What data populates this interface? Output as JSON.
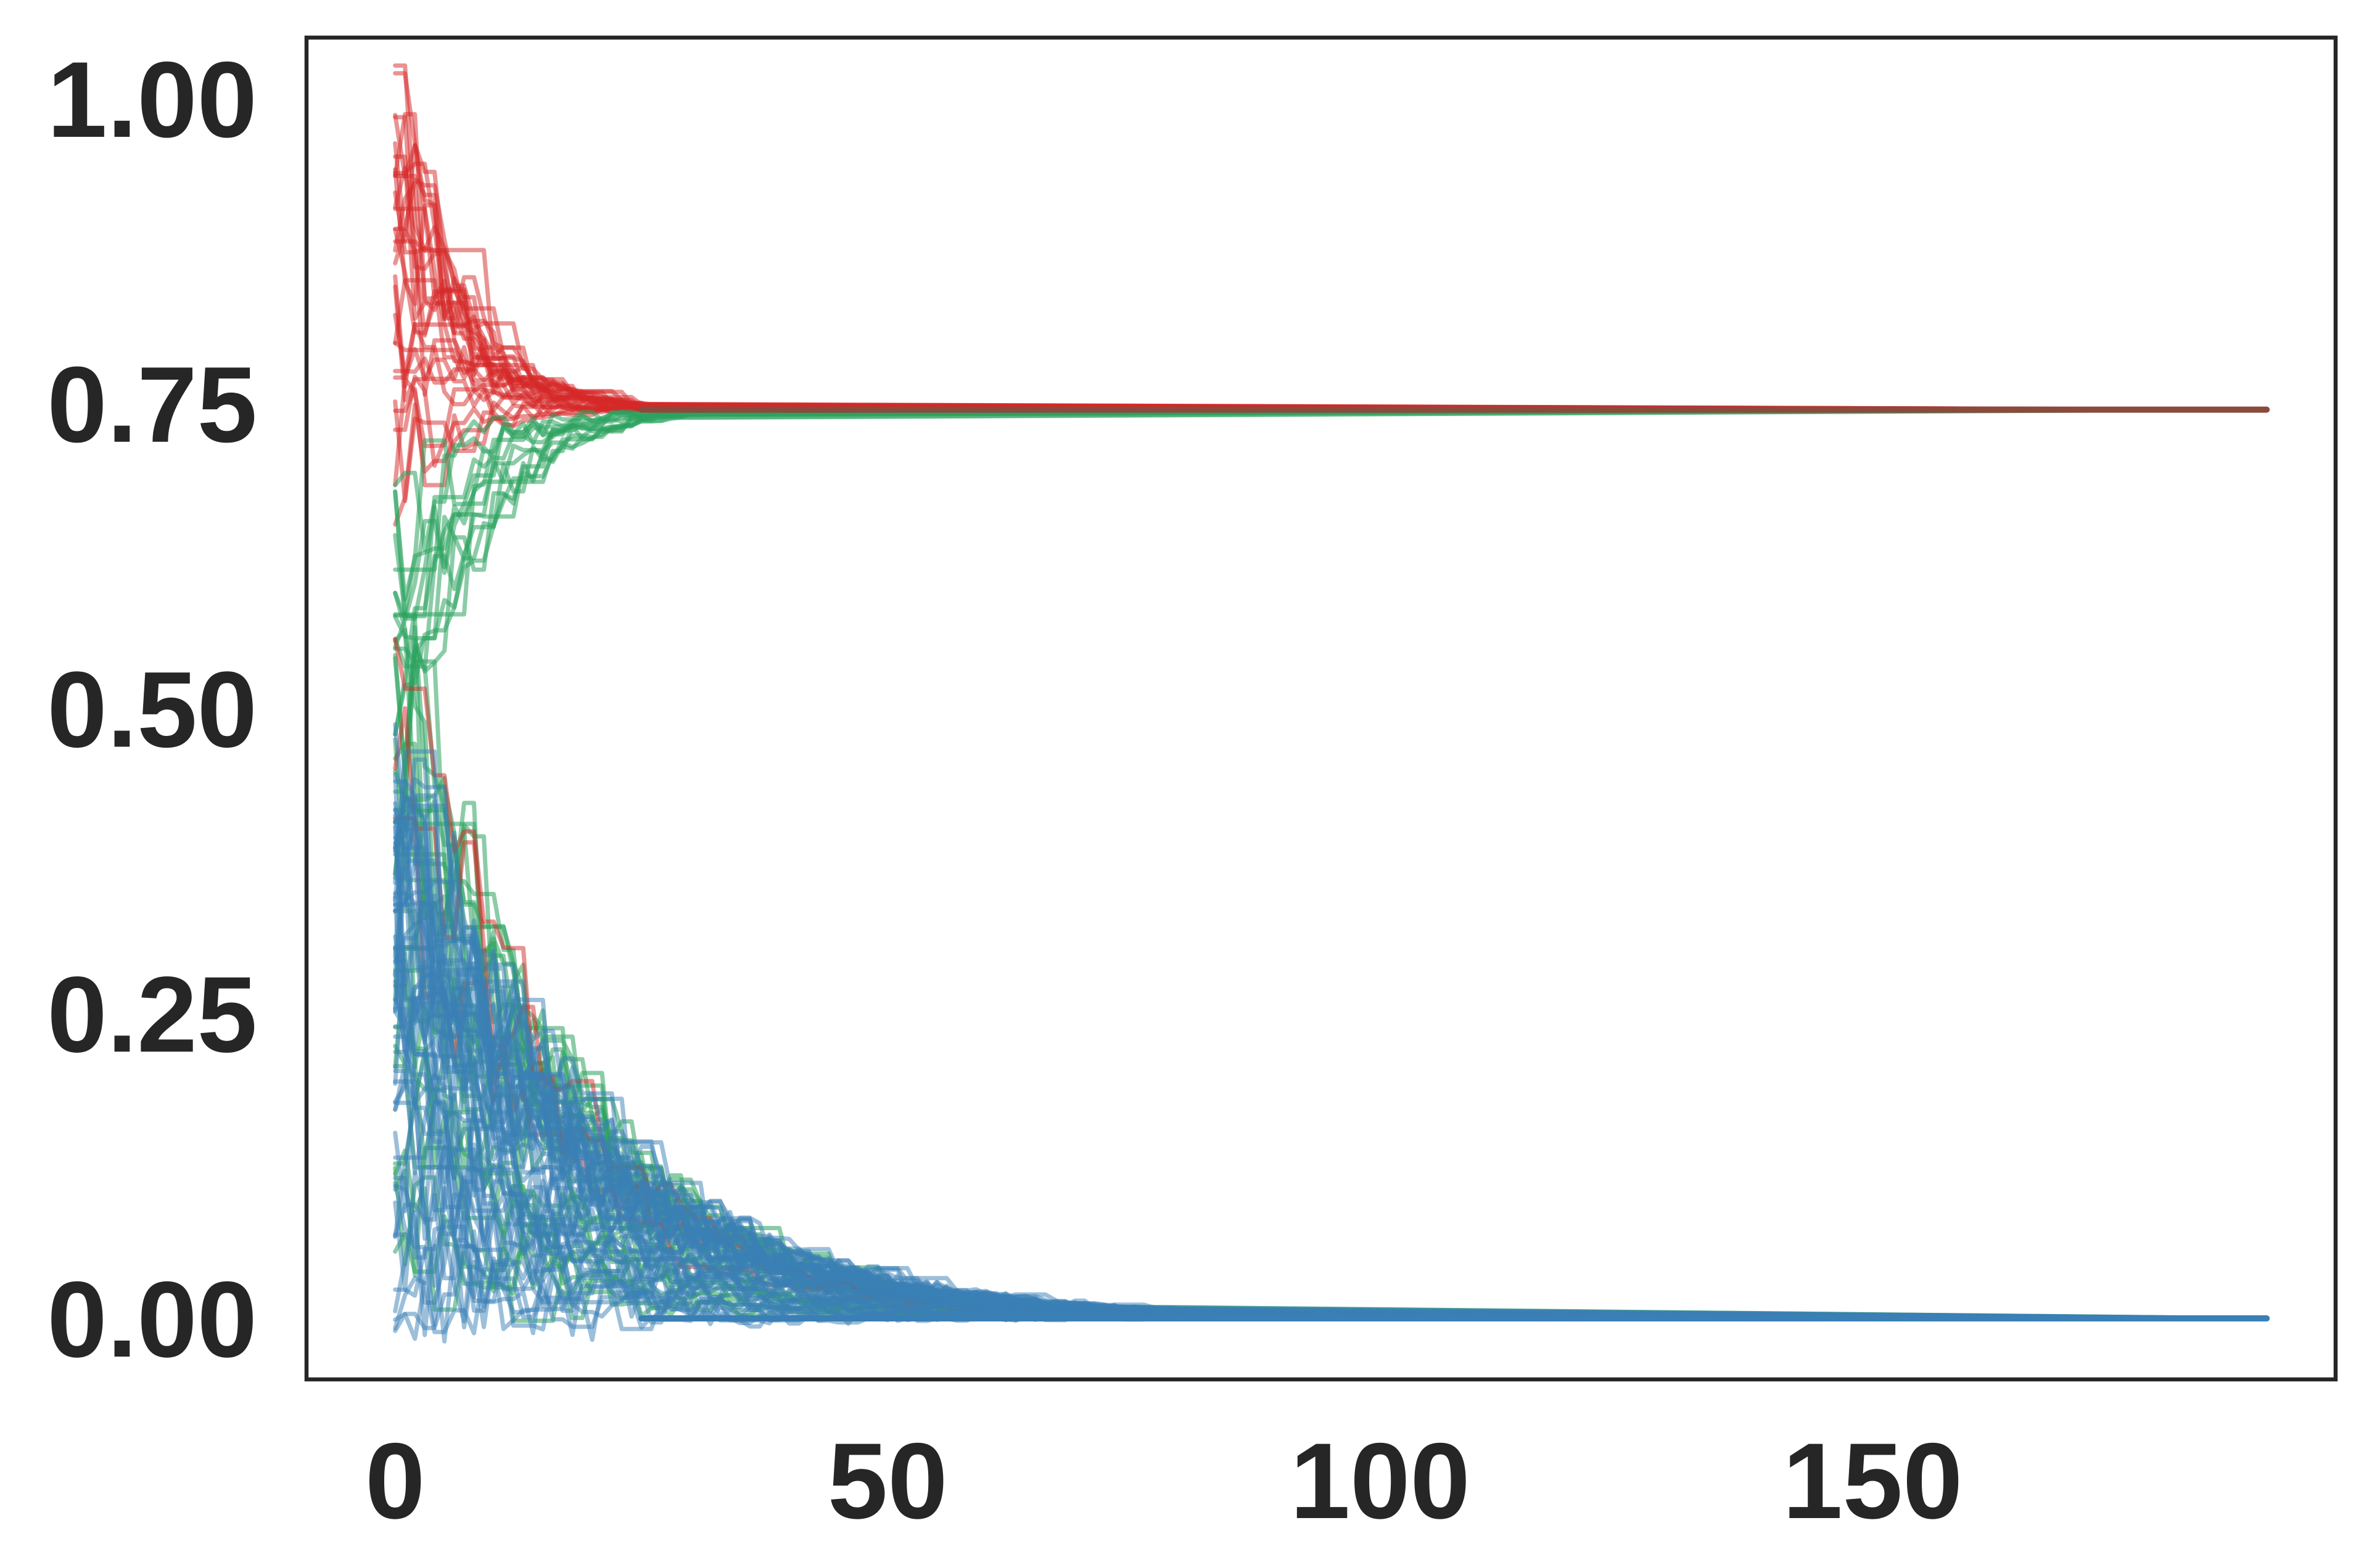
{
  "chart_data": {
    "type": "line",
    "title": "",
    "xlabel": "",
    "ylabel": "",
    "xlim": [
      -9,
      197
    ],
    "ylim": [
      -0.05,
      1.05
    ],
    "x_ticks": [
      0,
      50,
      100,
      150
    ],
    "x_tick_labels": [
      "0",
      "50",
      "100",
      "150"
    ],
    "y_ticks": [
      0.0,
      0.25,
      0.5,
      0.75,
      1.0
    ],
    "y_tick_labels": [
      "0.00",
      "0.25",
      "0.50",
      "0.75",
      "1.00"
    ],
    "grid": false,
    "legend": "none",
    "x_max": 190,
    "trace_groups": [
      {
        "color": "#d62728",
        "opacity": 0.5,
        "count": 30,
        "start_range": [
          0.7,
          1.0
        ],
        "converges_to": 0.745,
        "settle_x": 26
      },
      {
        "color": "#2ca25f",
        "opacity": 0.55,
        "count": 14,
        "start_range": [
          0.4,
          0.65
        ],
        "converges_to": 0.745,
        "settle_x": 30
      },
      {
        "color": "#2ca25f",
        "opacity": 0.55,
        "count": 30,
        "start_range": [
          0.05,
          0.55
        ],
        "converges_to": 0.0,
        "settle_x": 70
      },
      {
        "color": "#d62728",
        "opacity": 0.5,
        "count": 3,
        "start_range": [
          0.4,
          0.75
        ],
        "converges_to": 0.0,
        "settle_x": 60
      },
      {
        "color": "#3a7fb5",
        "opacity": 0.5,
        "count": 60,
        "start_range": [
          0.0,
          0.45
        ],
        "converges_to": 0.0,
        "settle_x": 80
      }
    ],
    "final_lines": [
      {
        "color": "#8b4a3c",
        "y": 0.745
      },
      {
        "color": "#3a7fb5",
        "y": 0.0
      }
    ]
  }
}
